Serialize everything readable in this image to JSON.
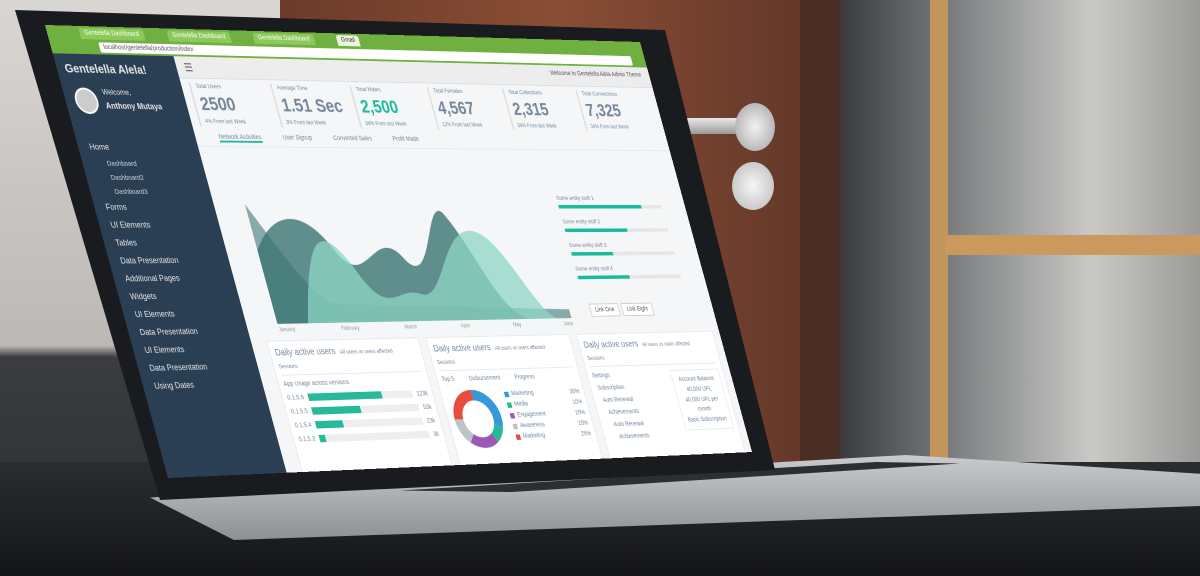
{
  "browser": {
    "tabs": [
      "Gentelella Dashboard",
      "Gentelella Dashboard",
      "Gentelella Dashboard",
      "Gmail"
    ],
    "url": "localhost/gentelella/production/index"
  },
  "sidebar": {
    "brand": "Gentelella Alela!",
    "welcome": "Welcome,",
    "user": "Anthony Mutaya",
    "items": [
      {
        "label": "Home",
        "sub": [
          "Dashboard",
          "Dashboard2",
          "Dashboard3"
        ]
      },
      {
        "label": "Forms"
      },
      {
        "label": "UI Elements"
      },
      {
        "label": "Tables"
      },
      {
        "label": "Data Presentation"
      },
      {
        "label": "Additional Pages"
      },
      {
        "label": "Widgets"
      },
      {
        "label": "UI Elements"
      },
      {
        "label": "Data Presentation"
      },
      {
        "label": "UI Elements"
      },
      {
        "label": "Data Presentation"
      },
      {
        "label": "Using Dates"
      }
    ]
  },
  "topbar": {
    "welcome": "Welcome to Gentelella Alela Admin Theme"
  },
  "stats": [
    {
      "label": "Total Users",
      "value": "2500",
      "sub": "4% From last Week"
    },
    {
      "label": "Average Time",
      "value": "1.51 Sec",
      "sub": "3% From last Week"
    },
    {
      "label": "Total Males",
      "value": "2,500",
      "sub": "34% From last Week",
      "green": true
    },
    {
      "label": "Total Females",
      "value": "4,567",
      "sub": "12% From last Week"
    },
    {
      "label": "Total Collections",
      "value": "2,315",
      "sub": "34% From last Week"
    },
    {
      "label": "Total Connections",
      "value": "7,325",
      "sub": "34% From last Week"
    }
  ],
  "tabs": [
    "Network Activities",
    "User Signup",
    "Converted Sales",
    "Profit Made"
  ],
  "chart": {
    "months": [
      "January",
      "February",
      "March",
      "April",
      "May",
      "June"
    ],
    "progress": [
      {
        "label": "Some entity stuff 1",
        "value": 80
      },
      {
        "label": "Some entity stuff 2",
        "value": 60
      },
      {
        "label": "Some entity stuff 3",
        "value": 40
      },
      {
        "label": "Some entity stuff 4",
        "value": 50
      }
    ],
    "buttons": [
      "Link One",
      "Link Eight"
    ]
  },
  "panels": {
    "title": "Daily active users",
    "subtitle": "All users vs users affected",
    "sessions": "Sessions",
    "usage": {
      "title": "App Usage across versions",
      "rows": [
        {
          "v": "0.1.5.6",
          "label": "123k",
          "pct": 70
        },
        {
          "v": "0.1.5.5",
          "label": "53k",
          "pct": 45
        },
        {
          "v": "0.1.5.4",
          "label": "23k",
          "pct": 25
        },
        {
          "v": "0.1.5.3",
          "label": "3k",
          "pct": 5
        }
      ]
    },
    "donut": {
      "headers": [
        "Top 5",
        "Disbursement",
        "Progress"
      ],
      "items": [
        {
          "label": "Marketing",
          "pct": "30%",
          "color": "#3498db"
        },
        {
          "label": "Media",
          "pct": "10%",
          "color": "#26b99a"
        },
        {
          "label": "Engagement",
          "pct": "20%",
          "color": "#9b59b6"
        },
        {
          "label": "Awareness",
          "pct": "15%",
          "color": "#bdc3c7"
        },
        {
          "label": "Marketing",
          "pct": "25%",
          "color": "#e74c3c"
        }
      ]
    },
    "settings": {
      "items": [
        "Settings",
        "Subscription",
        "Auto Renewal",
        "Achievements",
        "Auto Renewal",
        "Achievements"
      ],
      "account_title": "Account Balance",
      "balance": "40,000 UPL",
      "per_month": "40,000 UPL per month",
      "plan": "Basic Subscription"
    }
  }
}
